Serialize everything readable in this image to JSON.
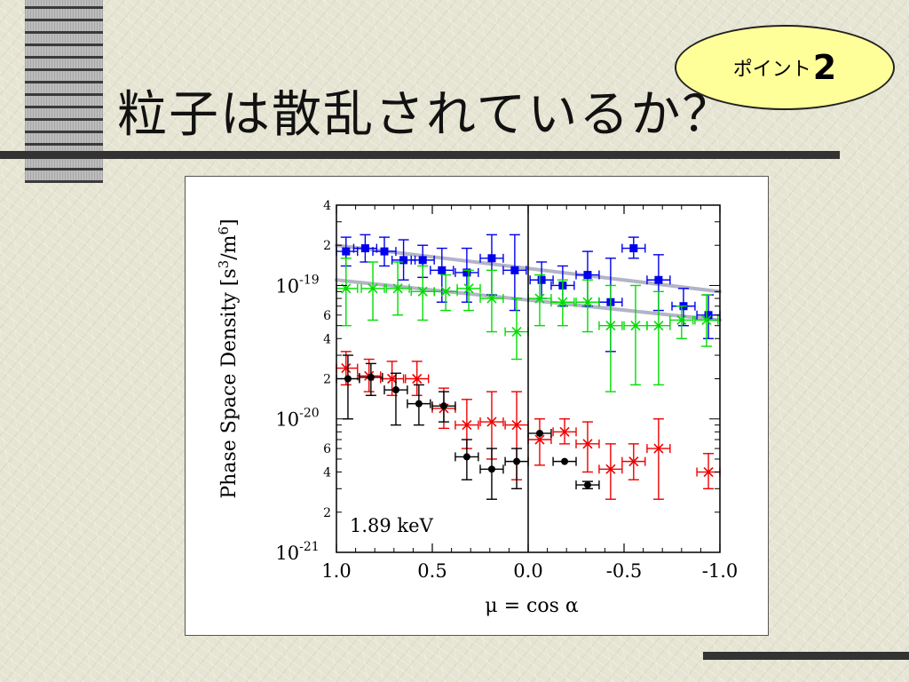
{
  "slide": {
    "title": "粒子は散乱されているか？",
    "badge_label": "ポイント",
    "badge_number": "2"
  },
  "chart_data": {
    "type": "scatter",
    "title": "",
    "xlabel": "μ = cos α",
    "ylabel": "Phase Space Density [s³/m⁶]",
    "ylabel_parts": {
      "main": "Phase Space Density [s",
      "sup1": "3",
      "mid": "/m",
      "sup2": "6",
      "end": "]"
    },
    "xlim": [
      1.0,
      -1.0
    ],
    "ylim": [
      1e-21,
      4e-19
    ],
    "yscale": "log",
    "x_ticks": [
      {
        "value": 1.0,
        "label": "1.0"
      },
      {
        "value": 0.5,
        "label": "0.5"
      },
      {
        "value": 0.0,
        "label": "0.0"
      },
      {
        "value": -0.5,
        "label": "-0.5"
      },
      {
        "value": -1.0,
        "label": "-1.0"
      }
    ],
    "y_major_ticks": [
      {
        "value": 1e-21,
        "base": "10",
        "exp": "-21"
      },
      {
        "value": 1e-20,
        "base": "10",
        "exp": "-20"
      },
      {
        "value": 1e-19,
        "base": "10",
        "exp": "-19"
      }
    ],
    "y_minor_labels": [
      {
        "value": 2e-21,
        "label": "2"
      },
      {
        "value": 4e-21,
        "label": "4"
      },
      {
        "value": 6e-21,
        "label": "6"
      },
      {
        "value": 2e-20,
        "label": "2"
      },
      {
        "value": 4e-20,
        "label": "4"
      },
      {
        "value": 6e-20,
        "label": "6"
      },
      {
        "value": 2e-19,
        "label": "2"
      },
      {
        "value": 4e-19,
        "label": "4"
      }
    ],
    "annotation": "1.89 keV",
    "grid": false,
    "vertical_line_x": 0.0,
    "series": [
      {
        "color": "#0000ee",
        "marker": "square",
        "points": [
          {
            "x": 0.95,
            "y": 1.8e-19,
            "lo": 1.4e-19,
            "hi": 2.3e-19
          },
          {
            "x": 0.85,
            "y": 1.9e-19,
            "lo": 1.5e-19,
            "hi": 2.4e-19
          },
          {
            "x": 0.75,
            "y": 1.8e-19,
            "lo": 1.4e-19,
            "hi": 2.3e-19
          },
          {
            "x": 0.65,
            "y": 1.55e-19,
            "lo": 1.1e-19,
            "hi": 2.2e-19
          },
          {
            "x": 0.55,
            "y": 1.55e-19,
            "lo": 1.15e-19,
            "hi": 2e-19
          },
          {
            "x": 0.45,
            "y": 1.3e-19,
            "lo": 7.5e-20,
            "hi": 1.9e-19
          },
          {
            "x": 0.32,
            "y": 1.25e-19,
            "lo": 7.5e-20,
            "hi": 1.9e-19
          },
          {
            "x": 0.19,
            "y": 1.6e-19,
            "lo": 8.5e-20,
            "hi": 2.4e-19
          },
          {
            "x": 0.07,
            "y": 1.3e-19,
            "lo": 6.5e-20,
            "hi": 2.4e-19
          },
          {
            "x": -0.07,
            "y": 1.1e-19,
            "lo": 8e-20,
            "hi": 1.5e-19
          },
          {
            "x": -0.18,
            "y": 1e-19,
            "lo": 7e-20,
            "hi": 1.4e-19
          },
          {
            "x": -0.31,
            "y": 1.2e-19,
            "lo": 7e-20,
            "hi": 1.8e-19
          },
          {
            "x": -0.43,
            "y": 7.5e-20,
            "lo": 3.2e-20,
            "hi": 1.6e-19
          },
          {
            "x": -0.55,
            "y": 1.9e-19,
            "lo": 1.6e-19,
            "hi": 2.3e-19
          },
          {
            "x": -0.68,
            "y": 1.1e-19,
            "lo": 6.5e-20,
            "hi": 1.7e-19
          },
          {
            "x": -0.81,
            "y": 7e-20,
            "lo": 5e-20,
            "hi": 9.5e-20
          },
          {
            "x": -0.94,
            "y": 6e-20,
            "lo": 4e-20,
            "hi": 8.5e-20
          }
        ]
      },
      {
        "color": "#00dd00",
        "marker": "cross",
        "points": [
          {
            "x": 0.95,
            "y": 9.5e-20,
            "lo": 5e-20,
            "hi": 1.6e-19
          },
          {
            "x": 0.81,
            "y": 9.5e-20,
            "lo": 5.5e-20,
            "hi": 1.5e-19
          },
          {
            "x": 0.68,
            "y": 9.5e-20,
            "lo": 6e-20,
            "hi": 1.5e-19
          },
          {
            "x": 0.55,
            "y": 9e-20,
            "lo": 5.5e-20,
            "hi": 1.4e-19
          },
          {
            "x": 0.43,
            "y": 9e-20,
            "lo": 6.5e-20,
            "hi": 1.2e-19
          },
          {
            "x": 0.31,
            "y": 9.5e-20,
            "lo": 6.5e-20,
            "hi": 1.3e-19
          },
          {
            "x": 0.19,
            "y": 8e-20,
            "lo": 4.5e-20,
            "hi": 1.3e-19
          },
          {
            "x": 0.06,
            "y": 4.5e-20,
            "lo": 2.8e-20,
            "hi": 8e-20
          },
          {
            "x": -0.06,
            "y": 8e-20,
            "lo": 5e-20,
            "hi": 1.2e-19
          },
          {
            "x": -0.18,
            "y": 7.5e-20,
            "lo": 5e-20,
            "hi": 1.1e-19
          },
          {
            "x": -0.31,
            "y": 7.5e-20,
            "lo": 4.5e-20,
            "hi": 1.1e-19
          },
          {
            "x": -0.43,
            "y": 5e-20,
            "lo": 1.6e-20,
            "hi": 1e-19
          },
          {
            "x": -0.56,
            "y": 5e-20,
            "lo": 1.8e-20,
            "hi": 1e-19
          },
          {
            "x": -0.68,
            "y": 5e-20,
            "lo": 1.8e-20,
            "hi": 9e-20
          },
          {
            "x": -0.8,
            "y": 5.5e-20,
            "lo": 4e-20,
            "hi": 7e-20
          },
          {
            "x": -0.93,
            "y": 5.5e-20,
            "lo": 3.5e-20,
            "hi": 8.5e-20
          }
        ]
      },
      {
        "color": "#ee0000",
        "marker": "cross",
        "points": [
          {
            "x": 0.95,
            "y": 2.4e-20,
            "lo": 1.8e-20,
            "hi": 3.2e-20
          },
          {
            "x": 0.83,
            "y": 2.1e-20,
            "lo": 1.6e-20,
            "hi": 2.8e-20
          },
          {
            "x": 0.71,
            "y": 2e-20,
            "lo": 1.5e-20,
            "hi": 2.7e-20
          },
          {
            "x": 0.58,
            "y": 2e-20,
            "lo": 1.5e-20,
            "hi": 2.7e-20
          },
          {
            "x": 0.44,
            "y": 1.2e-20,
            "lo": 8.5e-21,
            "hi": 1.7e-20
          },
          {
            "x": 0.32,
            "y": 9e-21,
            "lo": 6e-21,
            "hi": 1.4e-20
          },
          {
            "x": 0.19,
            "y": 9.5e-21,
            "lo": 5e-21,
            "hi": 1.6e-20
          },
          {
            "x": 0.06,
            "y": 9e-21,
            "lo": 3.5e-21,
            "hi": 1.6e-20
          },
          {
            "x": -0.06,
            "y": 7e-21,
            "lo": 4.5e-21,
            "hi": 1e-20
          },
          {
            "x": -0.19,
            "y": 8e-21,
            "lo": 6.5e-21,
            "hi": 1e-20
          },
          {
            "x": -0.31,
            "y": 6.5e-21,
            "lo": 4e-21,
            "hi": 9.5e-21
          },
          {
            "x": -0.43,
            "y": 4.2e-21,
            "lo": 2.5e-21,
            "hi": 6.5e-21
          },
          {
            "x": -0.55,
            "y": 4.8e-21,
            "lo": 3.5e-21,
            "hi": 6.5e-21
          },
          {
            "x": -0.68,
            "y": 6e-21,
            "lo": 2.5e-21,
            "hi": 1e-20
          },
          {
            "x": -0.94,
            "y": 4e-21,
            "lo": 3e-21,
            "hi": 5.5e-21
          }
        ]
      },
      {
        "color": "#000000",
        "marker": "circle",
        "points": [
          {
            "x": 0.94,
            "y": 2e-20,
            "lo": 1e-20,
            "hi": 3e-20
          },
          {
            "x": 0.82,
            "y": 2.05e-20,
            "lo": 1.5e-20,
            "hi": 2.6e-20
          },
          {
            "x": 0.69,
            "y": 1.65e-20,
            "lo": 9e-21,
            "hi": 2.2e-20
          },
          {
            "x": 0.57,
            "y": 1.3e-20,
            "lo": 9e-21,
            "hi": 1.8e-20
          },
          {
            "x": 0.44,
            "y": 1.25e-20,
            "lo": 9.5e-21,
            "hi": 1.6e-20
          },
          {
            "x": 0.32,
            "y": 5.2e-21,
            "lo": 3.5e-21,
            "hi": 7e-21
          },
          {
            "x": 0.19,
            "y": 4.2e-21,
            "lo": 2.5e-21,
            "hi": 6e-21
          },
          {
            "x": 0.06,
            "y": 4.8e-21,
            "lo": 3e-21,
            "hi": 6e-21
          },
          {
            "x": -0.06,
            "y": 7.8e-21,
            "lo": 7.8e-21,
            "hi": 7.8e-21
          },
          {
            "x": -0.19,
            "y": 4.8e-21,
            "lo": 4.8e-21,
            "hi": 4.8e-21
          },
          {
            "x": -0.31,
            "y": 3.2e-21,
            "lo": 3e-21,
            "hi": 3.4e-21
          }
        ]
      }
    ],
    "fit_lines": [
      {
        "color": "#b4b4c8",
        "x": [
          1.0,
          -1.0
        ],
        "y": [
          2e-19,
          9e-20
        ]
      },
      {
        "color": "#b4b4c8",
        "x": [
          1.0,
          -1.0
        ],
        "y": [
          1.1e-19,
          5.5e-20
        ]
      }
    ]
  }
}
